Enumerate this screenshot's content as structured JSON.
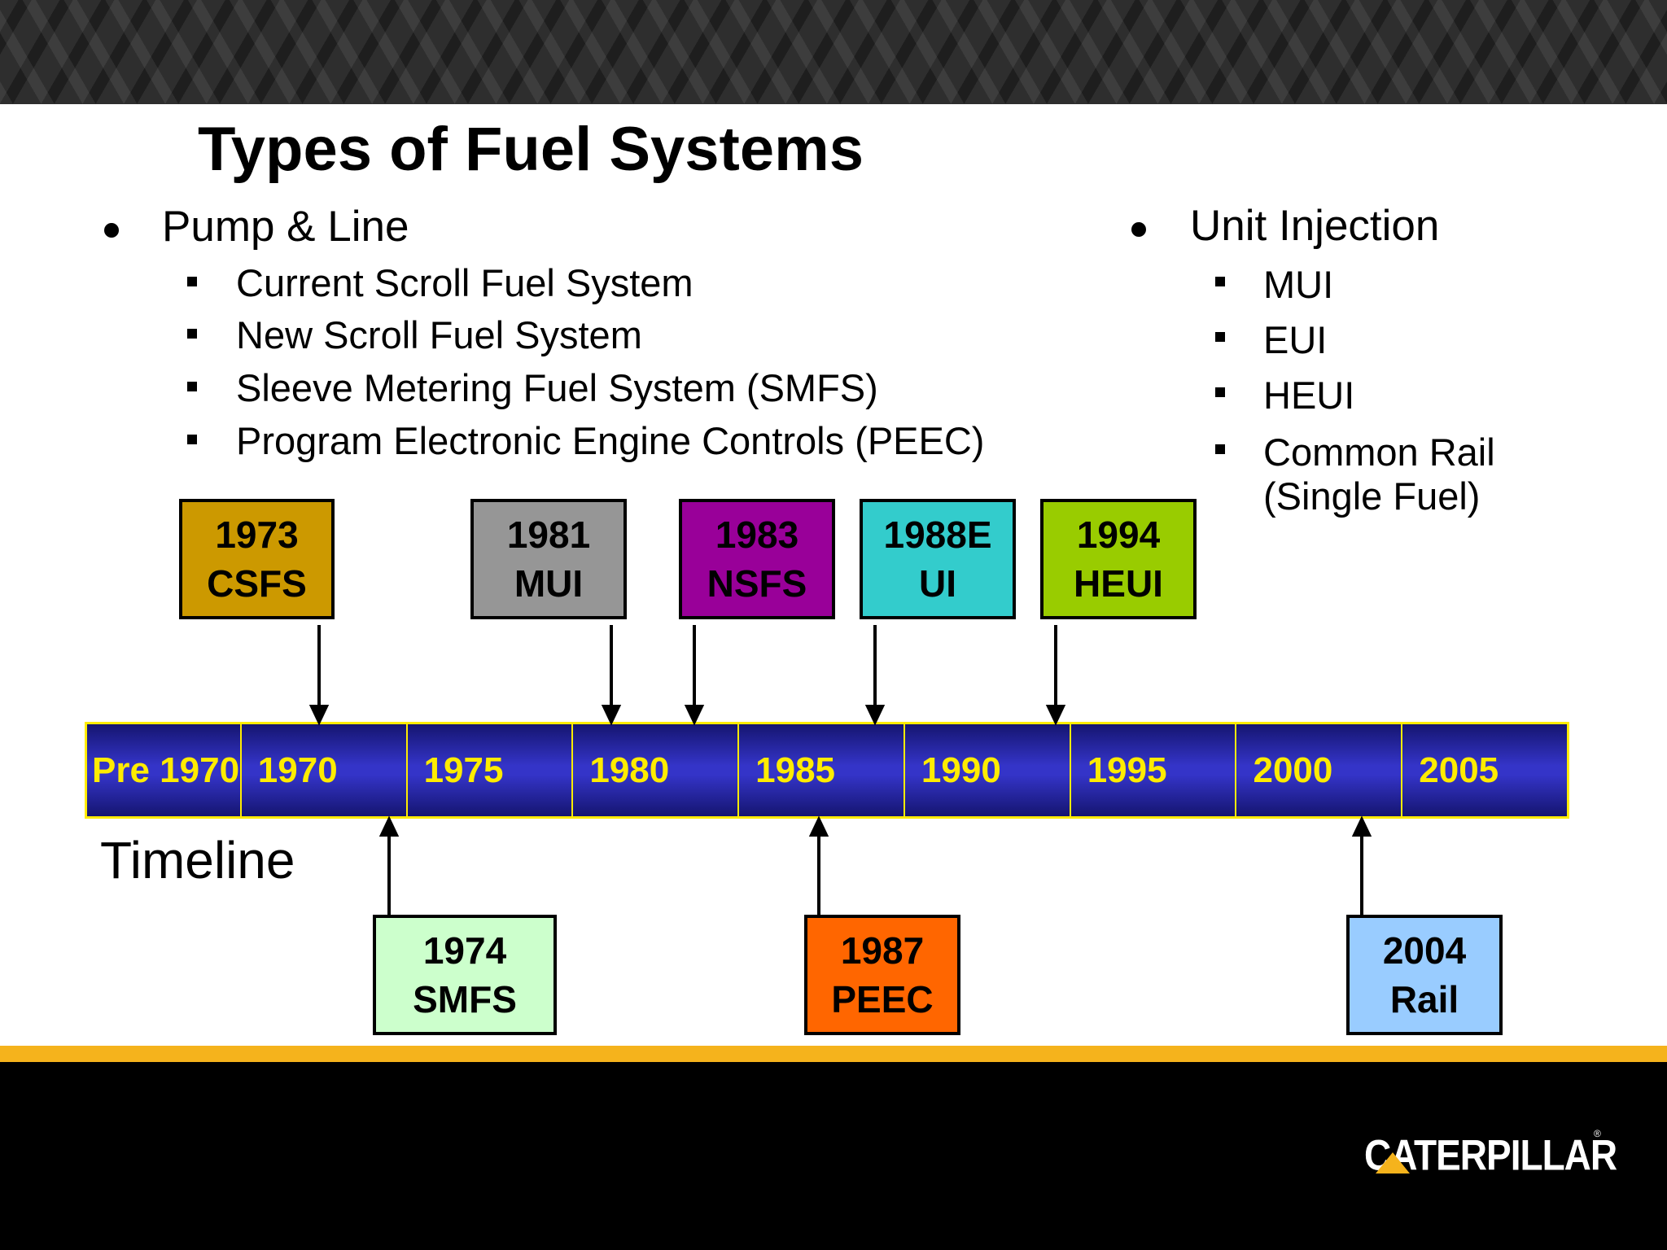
{
  "slide": {
    "title": "Types of Fuel Systems",
    "left_bullet": {
      "heading": "Pump & Line",
      "items": [
        "Current Scroll Fuel System",
        "New Scroll Fuel System",
        "Sleeve Metering Fuel System (SMFS)",
        "Program Electronic Engine Controls (PEEC)"
      ]
    },
    "right_bullet": {
      "heading": "Unit Injection",
      "items": [
        "MUI",
        "EUI",
        "HEUI",
        "Common Rail",
        "(Single Fuel)"
      ]
    }
  },
  "timeline": {
    "label": "Timeline",
    "segments": [
      "Pre 1970",
      "1970",
      "1975",
      "1980",
      "1985",
      "1990",
      "1995",
      "2000",
      "2005"
    ],
    "above": [
      {
        "year": "1973",
        "name": "CSFS",
        "color": "#cc9900"
      },
      {
        "year": "1981",
        "name": "MUI",
        "color": "#969696"
      },
      {
        "year": "1983",
        "name": "NSFS",
        "color": "#990099"
      },
      {
        "year": "1988E",
        "name": "UI",
        "color": "#33cccc"
      },
      {
        "year": "1994",
        "name": "HEUI",
        "color": "#99cc00"
      }
    ],
    "below": [
      {
        "year": "1974",
        "name": "SMFS",
        "color": "#ccffcc"
      },
      {
        "year": "1987",
        "name": "PEEC",
        "color": "#ff6600"
      },
      {
        "year": "2004",
        "name": "Rail",
        "color": "#99ccff"
      }
    ]
  },
  "theme": {
    "timeline_fill": "#3434c8",
    "timeline_text": "#ffec00",
    "accent_stripe": "#f5b31c"
  },
  "brand": {
    "logo_text": "CATERPILLAR",
    "registered_mark": "®"
  }
}
